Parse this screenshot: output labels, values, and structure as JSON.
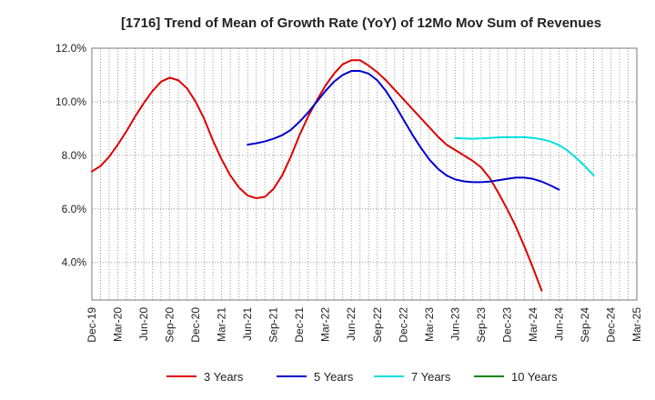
{
  "chart_data": {
    "type": "line",
    "title": "[1716]  Trend of Mean of Growth Rate (YoY) of 12Mo Mov Sum of Revenues",
    "xlabel": "",
    "ylabel": "",
    "x_tick_labels": [
      "Dec-19",
      "Mar-20",
      "Jun-20",
      "Sep-20",
      "Dec-20",
      "Mar-21",
      "Jun-21",
      "Sep-21",
      "Dec-21",
      "Mar-22",
      "Jun-22",
      "Sep-22",
      "Dec-22",
      "Mar-23",
      "Jun-23",
      "Sep-23",
      "Dec-23",
      "Mar-24",
      "Jun-24",
      "Sep-24",
      "Dec-24",
      "Mar-25"
    ],
    "y_ticks": [
      4.0,
      6.0,
      8.0,
      10.0,
      12.0
    ],
    "y_tick_labels": [
      "4.0%",
      "6.0%",
      "8.0%",
      "10.0%",
      "12.0%"
    ],
    "ylim": [
      2.6,
      12.0
    ],
    "x_range_months": [
      0,
      63
    ],
    "grid": true,
    "legend_position": "bottom",
    "series": [
      {
        "name": "3 Years",
        "color": "#dd0000",
        "start_month": 0,
        "values": [
          7.4,
          7.6,
          7.95,
          8.4,
          8.9,
          9.45,
          9.95,
          10.4,
          10.75,
          10.9,
          10.8,
          10.5,
          10.0,
          9.35,
          8.55,
          7.85,
          7.25,
          6.8,
          6.5,
          6.4,
          6.45,
          6.75,
          7.25,
          7.95,
          8.75,
          9.45,
          10.05,
          10.6,
          11.05,
          11.4,
          11.55,
          11.55,
          11.35,
          11.1,
          10.8,
          10.45,
          10.1,
          9.75,
          9.4,
          9.05,
          8.7,
          8.4,
          8.2,
          8.0,
          7.8,
          7.55,
          7.15,
          6.6,
          6.0,
          5.35,
          4.6,
          3.8,
          2.95
        ]
      },
      {
        "name": "5 Years",
        "color": "#0000cc",
        "start_month": 18,
        "values": [
          8.4,
          8.45,
          8.52,
          8.62,
          8.75,
          8.95,
          9.25,
          9.6,
          10.0,
          10.4,
          10.75,
          11.0,
          11.15,
          11.15,
          11.05,
          10.8,
          10.4,
          9.9,
          9.35,
          8.8,
          8.3,
          7.85,
          7.5,
          7.25,
          7.1,
          7.03,
          7.0,
          7.0,
          7.02,
          7.07,
          7.12,
          7.17,
          7.17,
          7.12,
          7.02,
          6.88,
          6.72
        ]
      },
      {
        "name": "7 Years",
        "color": "#00e0e0",
        "start_month": 42,
        "values": [
          8.65,
          8.63,
          8.62,
          8.63,
          8.65,
          8.67,
          8.68,
          8.68,
          8.68,
          8.65,
          8.6,
          8.52,
          8.38,
          8.18,
          7.9,
          7.6,
          7.25
        ]
      },
      {
        "name": "10 Years",
        "color": "#008800",
        "start_month": null,
        "values": []
      }
    ]
  }
}
